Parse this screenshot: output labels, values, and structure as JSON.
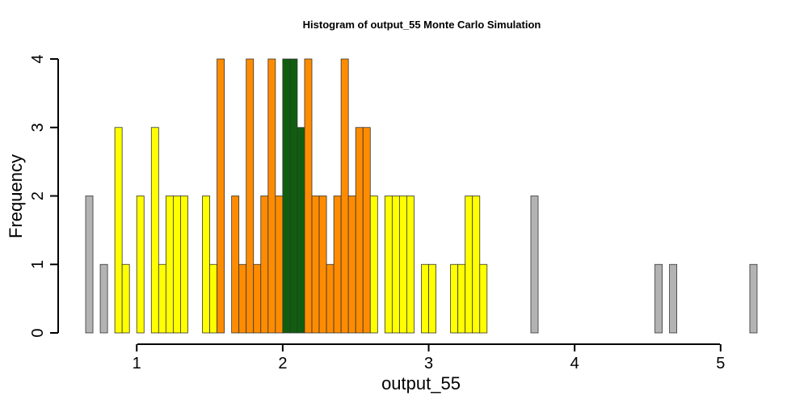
{
  "chart_data": {
    "type": "bar",
    "title": "Histogram of  output_55  Monte Carlo Simulation",
    "xlabel": "output_55",
    "ylabel": "Frequency",
    "xlim": [
      0.65,
      5.25
    ],
    "ylim": [
      0,
      4
    ],
    "x_ticks": [
      "1",
      "2",
      "3",
      "4",
      "5"
    ],
    "y_ticks": [
      "0",
      "1",
      "2",
      "3",
      "4"
    ],
    "bin_start": 0.65,
    "bin_width": 0.05,
    "counts": [
      2,
      0,
      1,
      0,
      3,
      1,
      0,
      2,
      0,
      3,
      1,
      2,
      2,
      2,
      0,
      0,
      2,
      1,
      4,
      0,
      2,
      1,
      4,
      1,
      2,
      4,
      2,
      4,
      4,
      3,
      4,
      2,
      2,
      1,
      2,
      4,
      2,
      3,
      3,
      2,
      0,
      2,
      2,
      2,
      2,
      0,
      1,
      1,
      0,
      0,
      1,
      1,
      2,
      2,
      1,
      0,
      0,
      0,
      0,
      0,
      0,
      2,
      0,
      0,
      0,
      0,
      0,
      0,
      0,
      0,
      0,
      0,
      0,
      0,
      0,
      0,
      0,
      0,
      1,
      0,
      1,
      0,
      0,
      0,
      0,
      0,
      0,
      0,
      0,
      0,
      0,
      1
    ],
    "colors": {
      "gray": "#b3b3b3",
      "yellow": "#ffff00",
      "orange": "#ff8c00",
      "green": "#0f5e0f"
    },
    "bar_color_by_bin": [
      "gray",
      "gray",
      "gray",
      "gray",
      "yellow",
      "yellow",
      "yellow",
      "yellow",
      "yellow",
      "yellow",
      "yellow",
      "yellow",
      "yellow",
      "yellow",
      "yellow",
      "yellow",
      "yellow",
      "yellow",
      "orange",
      "orange",
      "orange",
      "orange",
      "orange",
      "orange",
      "orange",
      "orange",
      "orange",
      "green",
      "green",
      "green",
      "orange",
      "orange",
      "orange",
      "orange",
      "orange",
      "orange",
      "orange",
      "orange",
      "orange",
      "yellow",
      "yellow",
      "yellow",
      "yellow",
      "yellow",
      "yellow",
      "yellow",
      "yellow",
      "yellow",
      "yellow",
      "yellow",
      "yellow",
      "yellow",
      "yellow",
      "yellow",
      "yellow",
      "gray",
      "gray",
      "gray",
      "gray",
      "gray",
      "gray",
      "gray",
      "gray",
      "gray",
      "gray",
      "gray",
      "gray",
      "gray",
      "gray",
      "gray",
      "gray",
      "gray",
      "gray",
      "gray",
      "gray",
      "gray",
      "gray",
      "gray",
      "gray",
      "gray",
      "gray",
      "gray",
      "gray",
      "gray",
      "gray",
      "gray",
      "gray",
      "gray",
      "gray",
      "gray",
      "gray",
      "gray"
    ]
  }
}
